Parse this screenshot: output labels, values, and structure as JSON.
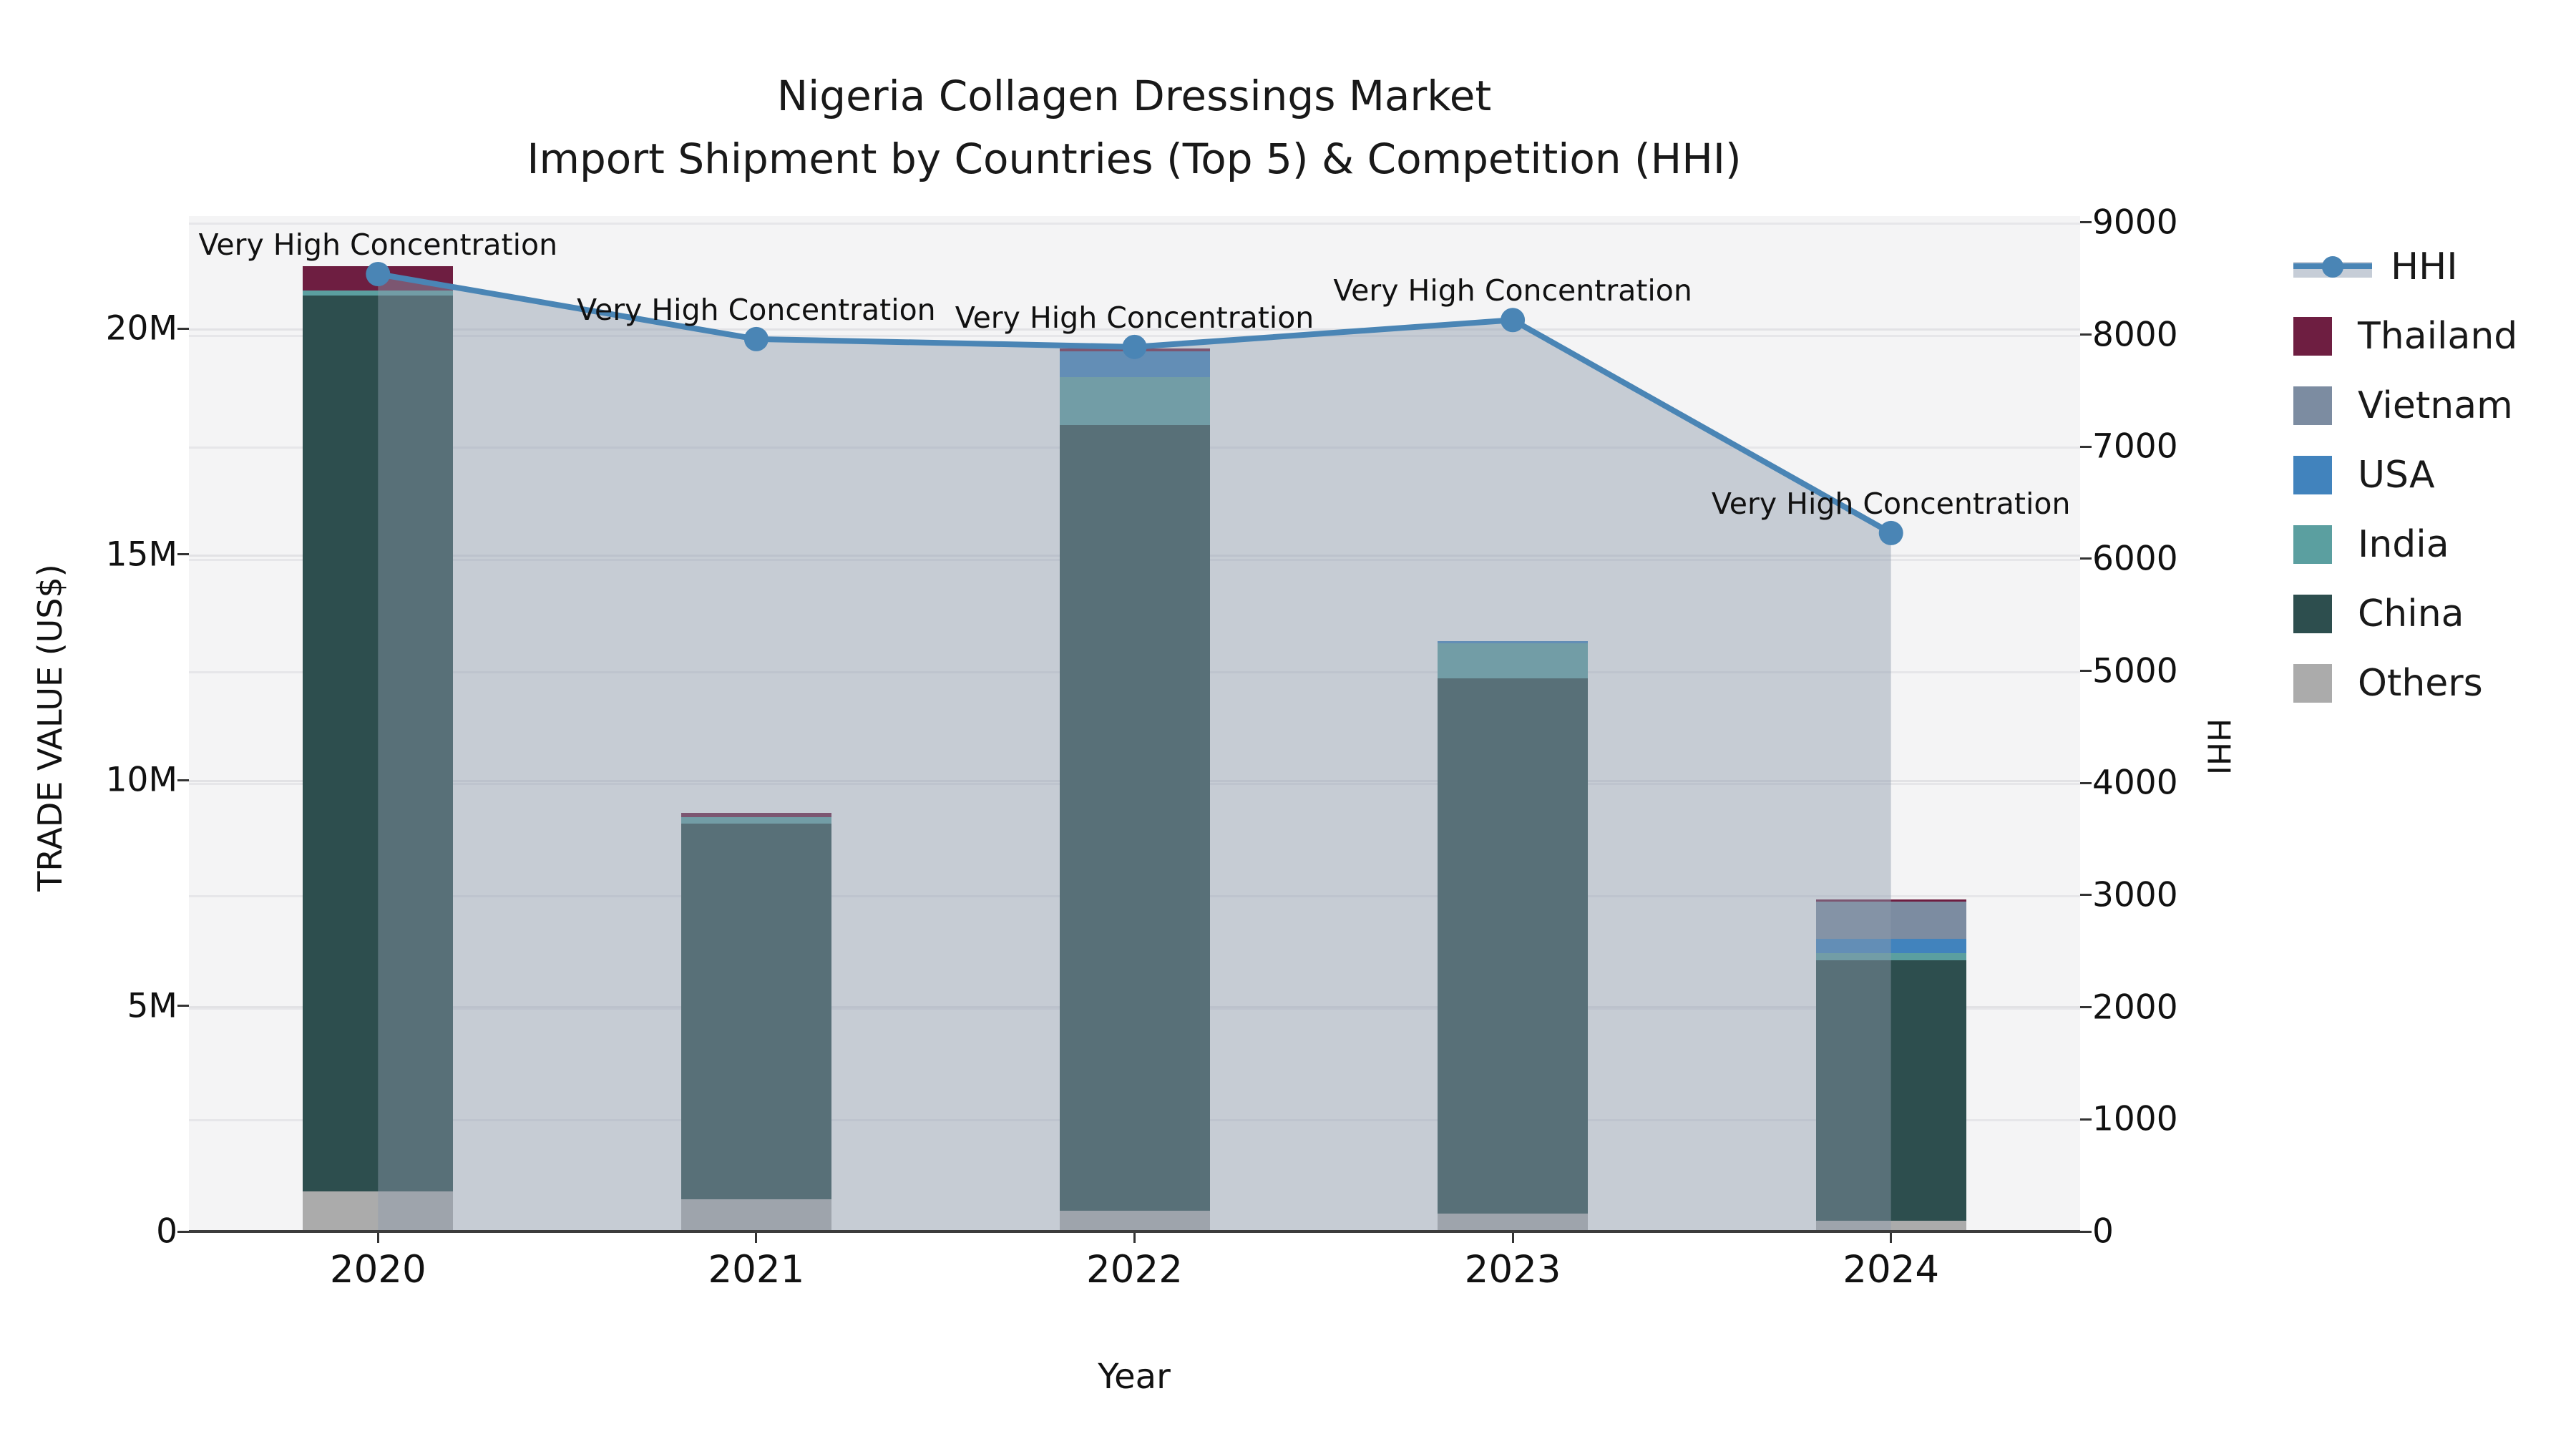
{
  "title": {
    "line1": "Nigeria Collagen Dressings Market",
    "line2": "Import Shipment by Countries (Top 5) & Competition (HHI)"
  },
  "axes": {
    "x_label": "Year",
    "y_left_label": "TRADE VALUE (US$)",
    "y_right_label": "HHI",
    "y_left_ticks": [
      "0",
      "5M",
      "10M",
      "15M",
      "20M"
    ],
    "y_right_ticks": [
      "0",
      "1000",
      "2000",
      "3000",
      "4000",
      "5000",
      "6000",
      "7000",
      "8000",
      "9000"
    ]
  },
  "annotation_text": "Very High Concentration",
  "legend": [
    {
      "label": "HHI",
      "type": "line",
      "color": "#4a85b5"
    },
    {
      "label": "Thailand",
      "type": "swatch",
      "color": "#6e1e41"
    },
    {
      "label": "Vietnam",
      "type": "swatch",
      "color": "#7c8ca1"
    },
    {
      "label": "USA",
      "type": "swatch",
      "color": "#4183bd"
    },
    {
      "label": "India",
      "type": "swatch",
      "color": "#5b9fa0"
    },
    {
      "label": "China",
      "type": "swatch",
      "color": "#2d4e4e"
    },
    {
      "label": "Others",
      "type": "swatch",
      "color": "#ababab"
    }
  ],
  "chart_data": {
    "type": "bar",
    "subtype": "stacked-bars-with-line-area-overlay",
    "categories": [
      "2020",
      "2021",
      "2022",
      "2023",
      "2024"
    ],
    "bar_unit": "million US$",
    "series": [
      {
        "name": "Others",
        "color": "#ababab",
        "values": [
          0.88,
          0.71,
          0.46,
          0.4,
          0.24
        ]
      },
      {
        "name": "China",
        "color": "#2d4e4e",
        "values": [
          19.85,
          8.32,
          17.4,
          11.85,
          5.77
        ]
      },
      {
        "name": "India",
        "color": "#5b9fa0",
        "values": [
          0.11,
          0.14,
          1.06,
          0.78,
          0.16
        ]
      },
      {
        "name": "USA",
        "color": "#4183bd",
        "values": [
          0.0,
          0.0,
          0.57,
          0.05,
          0.32
        ]
      },
      {
        "name": "Vietnam",
        "color": "#7c8ca1",
        "values": [
          0.0,
          0.0,
          0.0,
          0.0,
          0.81
        ]
      },
      {
        "name": "Thailand",
        "color": "#6e1e41",
        "values": [
          0.54,
          0.1,
          0.06,
          0.0,
          0.06
        ]
      }
    ],
    "bar_totals": [
      21.38,
      9.27,
      19.55,
      13.08,
      7.36
    ],
    "line_series": {
      "name": "HHI",
      "color": "#4a85b5",
      "fill_color": "rgba(141,155,174,0.45)",
      "values": [
        8540,
        7960,
        7890,
        8130,
        6230
      ],
      "point_annotations": [
        "Very High Concentration",
        "Very High Concentration",
        "Very High Concentration",
        "Very High Concentration",
        "Very High Concentration"
      ]
    },
    "xlabel": "Year",
    "ylabel_left": "TRADE VALUE (US$)",
    "ylabel_right": "HHI",
    "y_left_range_musd": [
      0,
      22.49
    ],
    "y_right_range": [
      0,
      9057
    ],
    "grid": true,
    "legend_position": "right"
  }
}
